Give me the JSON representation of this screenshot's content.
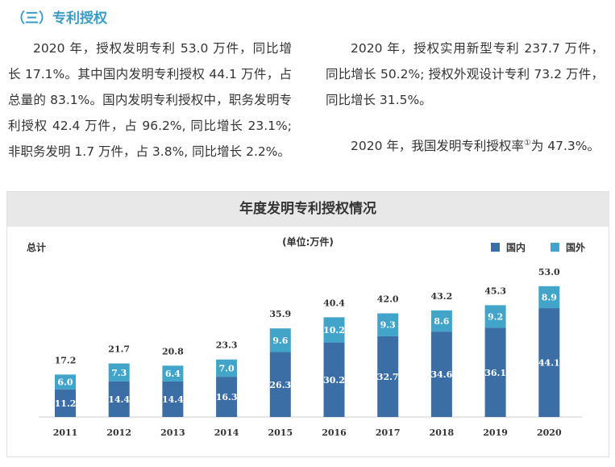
{
  "heading": "（三）专利授权",
  "para_left": "2020 年，授权发明专利 53.0 万件，同比增长 17.1%。其中国内发明专利授权 44.1 万件，占总量的 83.1%。国内发明专利授权中，职务发明专利授权 42.4 万件，占 96.2%, 同比增长 23.1%; 非职务发明 1.7 万件，占 3.8%, 同比增长 2.2%。",
  "para_right_1": "2020 年，授权实用新型专利 237.7 万件，同比增长 50.2%; 授权外观设计专利 73.2 万件，同比增长 31.5%。",
  "para_right_2a": "2020 年，我国发明专利授权率",
  "para_right_2_note": "①",
  "para_right_2b": "为 47.3%。",
  "colors": {
    "domestic": "#3b6ea5",
    "foreign": "#43a4ca",
    "heading": "#3a9cc4"
  },
  "chart_data": {
    "type": "bar",
    "stacked": true,
    "title": "年度发明专利授权情况",
    "unit": "(单位:万件)",
    "total_label": "总计",
    "legend_position": "top-right",
    "categories": [
      "2011",
      "2012",
      "2013",
      "2014",
      "2015",
      "2016",
      "2017",
      "2018",
      "2019",
      "2020"
    ],
    "series": [
      {
        "name": "国内",
        "values": [
          11.2,
          14.4,
          14.4,
          16.3,
          26.3,
          30.2,
          32.7,
          34.6,
          36.1,
          44.1
        ]
      },
      {
        "name": "国外",
        "values": [
          6.0,
          7.3,
          6.4,
          7.0,
          9.6,
          10.2,
          9.3,
          8.6,
          9.2,
          8.9
        ]
      }
    ],
    "totals": [
      17.2,
      21.7,
      20.8,
      23.3,
      35.9,
      40.4,
      42.0,
      43.2,
      45.3,
      53.0
    ],
    "ylim": [
      0,
      55
    ],
    "grid": false
  }
}
